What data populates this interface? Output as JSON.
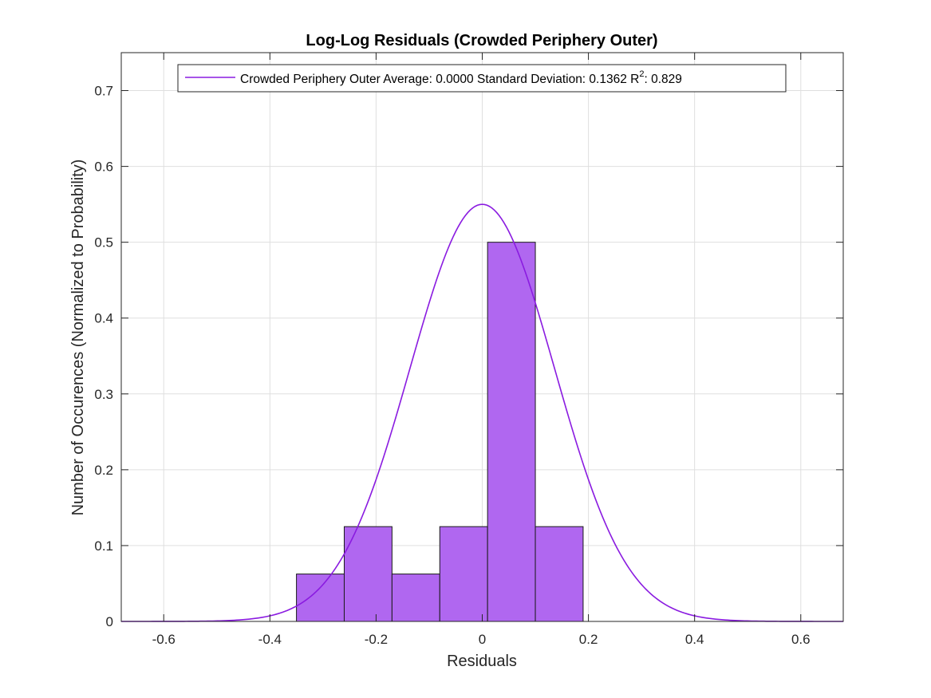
{
  "chart_data": {
    "type": "bar",
    "title": "Log-Log Residuals (Crowded Periphery Outer)",
    "xlabel": "Residuals",
    "ylabel": "Number of Occurences (Normalized to Probability)",
    "xlim": [
      -0.68,
      0.68
    ],
    "ylim": [
      0,
      0.75
    ],
    "grid": true,
    "legend_position": "top",
    "colors": {
      "bar_fill": "#b067f0",
      "bar_edge": "#1a1a1a",
      "curve": "#8a1be0"
    },
    "x_ticks": [
      {
        "value": -0.6,
        "label": "-0.6"
      },
      {
        "value": -0.4,
        "label": "-0.4"
      },
      {
        "value": -0.2,
        "label": "-0.2"
      },
      {
        "value": 0,
        "label": "0"
      },
      {
        "value": 0.2,
        "label": "0.2"
      },
      {
        "value": 0.4,
        "label": "0.4"
      },
      {
        "value": 0.6,
        "label": "0.6"
      }
    ],
    "y_ticks": [
      {
        "value": 0,
        "label": "0"
      },
      {
        "value": 0.1,
        "label": "0.1"
      },
      {
        "value": 0.2,
        "label": "0.2"
      },
      {
        "value": 0.3,
        "label": "0.3"
      },
      {
        "value": 0.4,
        "label": "0.4"
      },
      {
        "value": 0.5,
        "label": "0.5"
      },
      {
        "value": 0.6,
        "label": "0.6"
      },
      {
        "value": 0.7,
        "label": "0.7"
      }
    ],
    "histogram": {
      "bin_edges": [
        -0.35,
        -0.26,
        -0.17,
        -0.08,
        0.01,
        0.1,
        0.19
      ],
      "values": [
        0.0625,
        0.125,
        0.0625,
        0.125,
        0.5,
        0.125
      ]
    },
    "fit_curve": {
      "mean": 0.0,
      "std": 0.1362,
      "peak": 0.55
    },
    "legend": {
      "entry_prefix": "Crowded Periphery Outer Average: 0.0000 Standard Deviation: 0.1362 R",
      "entry_superscript": "2",
      "entry_suffix": ": 0.829"
    }
  }
}
